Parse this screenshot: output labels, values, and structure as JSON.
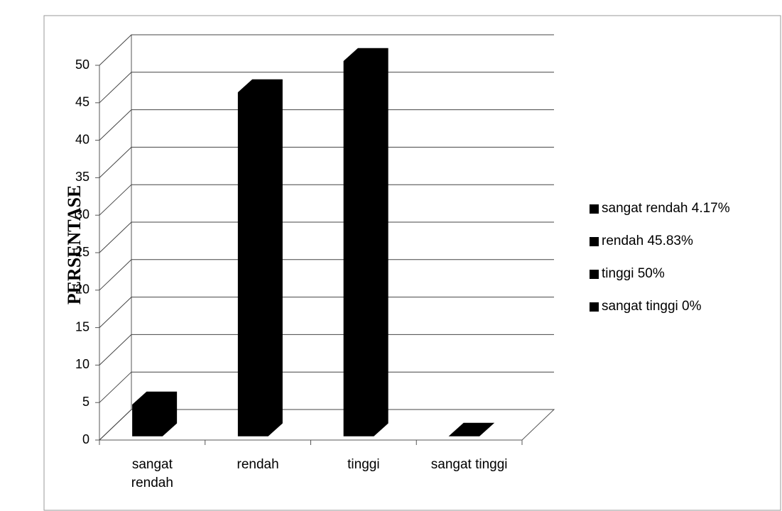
{
  "chart_data": {
    "type": "bar3d",
    "y_label": "PERSENTASE",
    "categories": [
      "sangat rendah",
      "rendah",
      "tinggi",
      "sangat tinggi"
    ],
    "series": [
      {
        "name": "sangat rendah 4.17%",
        "color": "#000000",
        "values": [
          4.17,
          null,
          null,
          null
        ]
      },
      {
        "name": "rendah 45.83%",
        "color": "#000000",
        "values": [
          null,
          45.83,
          null,
          null
        ]
      },
      {
        "name": "tinggi 50%",
        "color": "#000000",
        "values": [
          null,
          null,
          50,
          null
        ]
      },
      {
        "name": "sangat tinggi 0%",
        "color": "#000000",
        "values": [
          null,
          null,
          null,
          0
        ]
      }
    ],
    "ylim": [
      0,
      50
    ],
    "yticks": [
      0,
      5,
      10,
      15,
      20,
      25,
      30,
      35,
      40,
      45,
      50
    ],
    "grid": true,
    "legend": "right"
  }
}
